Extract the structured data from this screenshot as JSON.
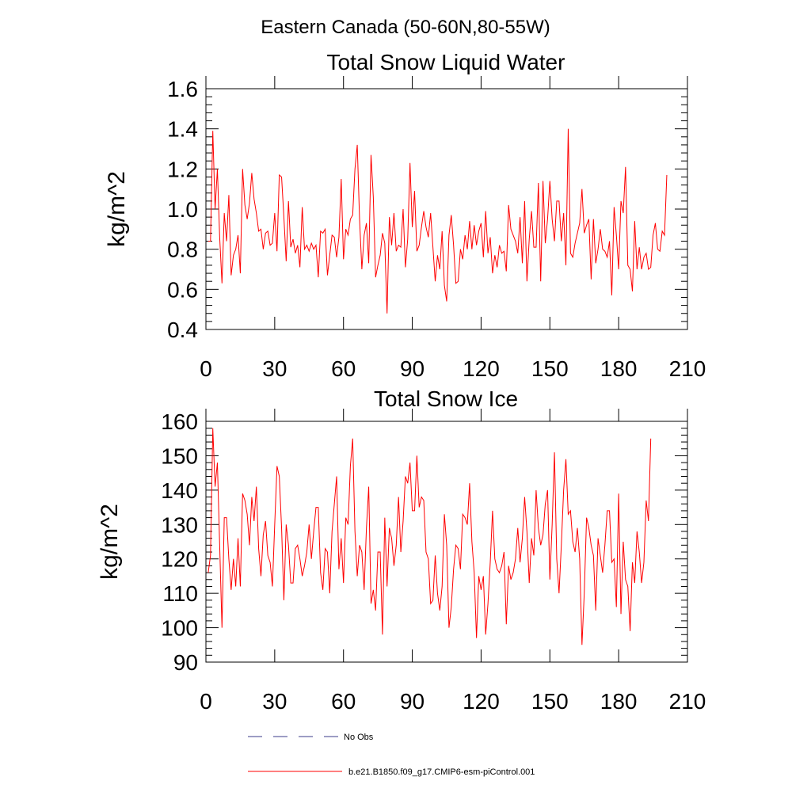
{
  "figure": {
    "main_title": "Eastern Canada (50-60N,80-55W)"
  },
  "legend": {
    "entries": [
      {
        "label": "No Obs",
        "style": "dashed",
        "color": "#3b3b8a"
      },
      {
        "label": "b.e21.B1850.f09_g17.CMIP6-esm-piControl.001",
        "style": "solid",
        "color": "#ff0000"
      }
    ]
  },
  "chart_data": [
    {
      "type": "line",
      "title": "Total Snow Liquid Water",
      "xlabel": "",
      "ylabel": "kg/m^2",
      "xlim": [
        0,
        210
      ],
      "ylim": [
        0.4,
        1.6
      ],
      "xticks": [
        0,
        30,
        60,
        90,
        120,
        150,
        180,
        210
      ],
      "xtick_labels": [
        "0",
        "30",
        "60",
        "90",
        "120",
        "150",
        "180",
        "210"
      ],
      "yticks": [
        0.4,
        0.6,
        0.8,
        1.0,
        1.2,
        1.4,
        1.6
      ],
      "ytick_labels": [
        "0.4",
        "0.6",
        "0.8",
        "1.0",
        "1.2",
        "1.4",
        "1.6"
      ],
      "series": [
        {
          "name": "b.e21.B1850.f09_g17.CMIP6-esm-piControl.001",
          "color": "#ff0000",
          "x_start": 1,
          "values": [
            0.84,
            0.84,
            1.39,
            1.0,
            1.2,
            0.86,
            0.63,
            0.98,
            0.84,
            1.07,
            0.67,
            0.77,
            0.8,
            0.87,
            0.68,
            1.2,
            1.02,
            0.95,
            1.03,
            1.18,
            1.05,
            0.98,
            0.89,
            0.9,
            0.8,
            0.88,
            0.89,
            0.82,
            0.83,
            0.98,
            0.79,
            1.17,
            1.16,
            0.96,
            0.74,
            1.04,
            0.81,
            0.85,
            0.78,
            0.82,
            0.71,
            1.01,
            0.8,
            0.82,
            0.79,
            0.83,
            0.8,
            0.82,
            0.66,
            0.89,
            0.88,
            0.9,
            0.67,
            0.77,
            0.87,
            0.86,
            0.76,
            0.86,
            1.15,
            0.75,
            0.9,
            0.87,
            0.95,
            0.97,
            1.2,
            1.32,
            0.95,
            0.7,
            0.87,
            0.93,
            0.73,
            1.27,
            1.06,
            0.66,
            0.72,
            0.77,
            0.88,
            0.83,
            0.48,
            0.96,
            0.82,
            0.98,
            0.79,
            0.82,
            0.81,
            1.0,
            0.71,
            0.85,
            1.23,
            0.91,
            1.09,
            0.79,
            0.82,
            0.91,
            0.99,
            0.91,
            0.86,
            0.98,
            0.81,
            0.64,
            0.77,
            0.7,
            0.89,
            0.62,
            0.54,
            0.87,
            0.97,
            0.82,
            0.63,
            0.64,
            0.8,
            0.75,
            0.87,
            0.8,
            0.94,
            0.8,
            0.92,
            0.82,
            0.89,
            0.93,
            0.76,
            0.99,
            0.78,
            0.86,
            0.68,
            0.77,
            0.71,
            0.82,
            0.78,
            0.79,
            0.69,
            1.02,
            0.9,
            0.87,
            0.84,
            0.78,
            0.96,
            0.73,
            1.04,
            0.64,
            0.85,
            0.99,
            0.81,
            0.81,
            1.13,
            0.64,
            1.14,
            0.83,
            0.95,
            1.14,
            0.95,
            0.84,
            1.04,
            1.04,
            0.84,
            0.98,
            0.72,
            1.4,
            0.78,
            0.76,
            0.83,
            0.88,
            0.93,
            1.1,
            0.88,
            0.92,
            0.95,
            0.65,
            0.95,
            0.73,
            0.8,
            0.9,
            0.8,
            0.79,
            0.76,
            0.84,
            0.57,
            1.01,
            0.87,
            0.7,
            1.04,
            0.98,
            1.21,
            0.72,
            0.7,
            0.59,
            0.94,
            0.7,
            0.81,
            0.7,
            0.76,
            0.78,
            0.7,
            0.71,
            0.87,
            0.93,
            0.8,
            0.79,
            0.89,
            0.87,
            1.17
          ]
        }
      ]
    },
    {
      "type": "line",
      "title": "Total Snow Ice",
      "xlabel": "",
      "ylabel": "kg/m^2",
      "xlim": [
        0,
        210
      ],
      "ylim": [
        90,
        160
      ],
      "xticks": [
        0,
        30,
        60,
        90,
        120,
        150,
        180,
        210
      ],
      "xtick_labels": [
        "0",
        "30",
        "60",
        "90",
        "120",
        "150",
        "180",
        "210"
      ],
      "yticks": [
        90,
        100,
        110,
        120,
        130,
        140,
        150,
        160
      ],
      "ytick_labels": [
        "90",
        "100",
        "110",
        "120",
        "130",
        "140",
        "150",
        "160"
      ],
      "series": [
        {
          "name": "b.e21.B1850.f09_g17.CMIP6-esm-piControl.001",
          "color": "#ff0000",
          "x_start": 1,
          "values": [
            116,
            121,
            158,
            141,
            148,
            124,
            100,
            132,
            132,
            120,
            111,
            120,
            112,
            126,
            112,
            139,
            137,
            133,
            124,
            138,
            131,
            141,
            123,
            115,
            127,
            131,
            121,
            119,
            112,
            130,
            147,
            144,
            129,
            108,
            130,
            124,
            113,
            113,
            123,
            124,
            120,
            115,
            118,
            122,
            130,
            120,
            128,
            135,
            135,
            116,
            111,
            123,
            122,
            110,
            128,
            136,
            144,
            117,
            126,
            113,
            132,
            130,
            147,
            155,
            128,
            115,
            124,
            122,
            111,
            129,
            141,
            107,
            111,
            105,
            122,
            122,
            98,
            132,
            112,
            129,
            126,
            118,
            124,
            138,
            122,
            131,
            144,
            142,
            148,
            134,
            134,
            150,
            135,
            138,
            137,
            122,
            120,
            107,
            108,
            121,
            110,
            105,
            112,
            133,
            124,
            100,
            106,
            117,
            124,
            123,
            117,
            133,
            132,
            130,
            142,
            125,
            116,
            97,
            115,
            111,
            115,
            98,
            107,
            119,
            134,
            120,
            117,
            116,
            118,
            122,
            101,
            118,
            114,
            116,
            120,
            129,
            119,
            126,
            138,
            128,
            113,
            126,
            121,
            140,
            129,
            124,
            127,
            136,
            140,
            114,
            130,
            151,
            120,
            110,
            124,
            140,
            149,
            133,
            134,
            125,
            122,
            129,
            120,
            95,
            110,
            132,
            129,
            124,
            121,
            105,
            126,
            121,
            116,
            124,
            134,
            134,
            119,
            120,
            106,
            139,
            104,
            125,
            114,
            112,
            99,
            119,
            113,
            128,
            122,
            113,
            119,
            137,
            131,
            155
          ]
        }
      ]
    }
  ]
}
